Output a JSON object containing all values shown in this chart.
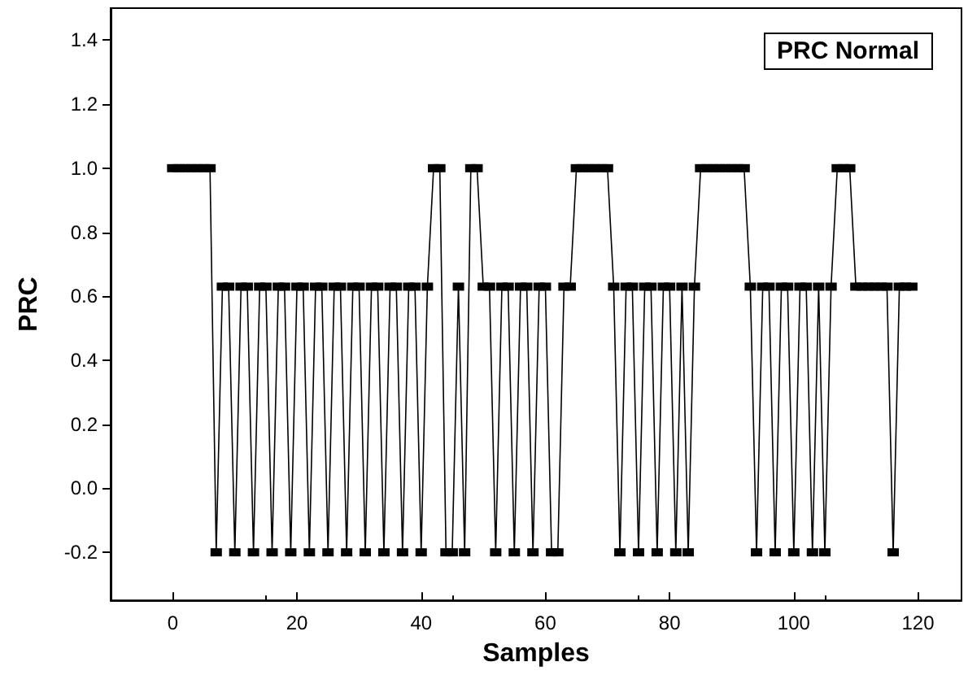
{
  "chart_data": {
    "type": "line",
    "title": "PRC Normal",
    "xlabel": "Samples",
    "ylabel": "PRC",
    "x": [
      0,
      1,
      2,
      3,
      4,
      5,
      6,
      7,
      8,
      9,
      10,
      11,
      12,
      13,
      14,
      15,
      16,
      17,
      18,
      19,
      20,
      21,
      22,
      23,
      24,
      25,
      26,
      27,
      28,
      29,
      30,
      31,
      32,
      33,
      34,
      35,
      36,
      37,
      38,
      39,
      40,
      41,
      42,
      43,
      44,
      45,
      46,
      47,
      48,
      49,
      50,
      51,
      52,
      53,
      54,
      55,
      56,
      57,
      58,
      59,
      60,
      61,
      62,
      63,
      64,
      65,
      66,
      67,
      68,
      69,
      70,
      71,
      72,
      73,
      74,
      75,
      76,
      77,
      78,
      79,
      80,
      81,
      82,
      83,
      84,
      85,
      86,
      87,
      88,
      89,
      90,
      91,
      92,
      93,
      94,
      95,
      96,
      97,
      98,
      99,
      100,
      101,
      102,
      103,
      104,
      105,
      106,
      107,
      108,
      109,
      110,
      111,
      112,
      113,
      114,
      115,
      116,
      117,
      118,
      119
    ],
    "series": [
      {
        "color": "#000000",
        "values": [
          1,
          1,
          1,
          1,
          1,
          1,
          1,
          -0.2,
          0.63,
          0.63,
          -0.2,
          0.63,
          0.63,
          -0.2,
          0.63,
          0.63,
          -0.2,
          0.63,
          0.63,
          -0.2,
          0.63,
          0.63,
          -0.2,
          0.63,
          0.63,
          -0.2,
          0.63,
          0.63,
          -0.2,
          0.63,
          0.63,
          -0.2,
          0.63,
          0.63,
          -0.2,
          0.63,
          0.63,
          -0.2,
          0.63,
          0.63,
          -0.2,
          0.63,
          1,
          1,
          -0.2,
          -0.2,
          0.63,
          -0.2,
          1,
          1,
          0.63,
          0.63,
          -0.2,
          0.63,
          0.63,
          -0.2,
          0.63,
          0.63,
          -0.2,
          0.63,
          0.63,
          -0.2,
          -0.2,
          0.63,
          0.63,
          1,
          1,
          1,
          1,
          1,
          1,
          0.63,
          -0.2,
          0.63,
          0.63,
          -0.2,
          0.63,
          0.63,
          -0.2,
          0.63,
          0.63,
          -0.2,
          0.63,
          -0.2,
          0.63,
          1,
          1,
          1,
          1,
          1,
          1,
          1,
          1,
          0.63,
          -0.2,
          0.63,
          0.63,
          -0.2,
          0.63,
          0.63,
          -0.2,
          0.63,
          0.63,
          -0.2,
          0.63,
          -0.2,
          0.63,
          1,
          1,
          1,
          0.63,
          0.63,
          0.63,
          0.63,
          0.63,
          0.63,
          -0.2,
          0.63,
          0.63,
          0.63
        ]
      }
    ],
    "xlim": [
      -10,
      127
    ],
    "xticks": [
      0,
      20,
      40,
      60,
      80,
      100,
      120
    ],
    "ylim": [
      -0.35,
      1.5
    ],
    "yticks": [
      {
        "value": -0.2,
        "label": "-0.2"
      },
      {
        "value": 0,
        "label": "0.0"
      },
      {
        "value": 0.2,
        "label": "0.2"
      },
      {
        "value": 0.4,
        "label": "0.4"
      },
      {
        "value": 0.6,
        "label": "0.6"
      },
      {
        "value": 0.8,
        "label": "0.8"
      },
      {
        "value": 1,
        "label": "1.0"
      },
      {
        "value": 1.2,
        "label": "1.2"
      },
      {
        "value": 1.4,
        "label": "1.4"
      }
    ],
    "marker": "square",
    "line_style": "solid"
  }
}
